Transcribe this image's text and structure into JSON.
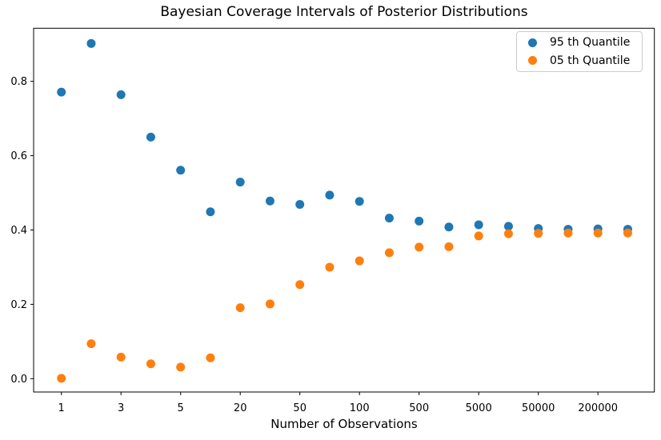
{
  "figure": {
    "title": "Bayesian Coverage Intervals of Posterior Distributions",
    "xlabel": "Number of Observations"
  },
  "chart_data": {
    "type": "scatter",
    "title": "Bayesian Coverage Intervals of Posterior Distributions",
    "xlabel": "Number of Observations",
    "ylabel": "",
    "grid": false,
    "legend_position": "upper right",
    "num_x_positions": 20,
    "x_tick_positions": [
      0,
      2,
      4,
      6,
      8,
      10,
      12,
      14,
      16,
      18
    ],
    "x_tick_labels": [
      "1",
      "3",
      "5",
      "20",
      "50",
      "100",
      "500",
      "5000",
      "50000",
      "200000"
    ],
    "y_ticks": [
      0.0,
      0.2,
      0.4,
      0.6,
      0.8
    ],
    "ylim": [
      -0.036,
      0.943
    ],
    "xlim": [
      -0.93,
      19.9
    ],
    "series": [
      {
        "name": "95 th Quantile",
        "color": "#1f77b4",
        "marker": "circle",
        "values": [
          0.771,
          0.902,
          0.764,
          0.65,
          0.561,
          0.449,
          0.529,
          0.478,
          0.469,
          0.494,
          0.477,
          0.432,
          0.424,
          0.408,
          0.414,
          0.41,
          0.404,
          0.402,
          0.403,
          0.402
        ]
      },
      {
        "name": "05 th Quantile",
        "color": "#ff7f0e",
        "marker": "circle",
        "values": [
          0.001,
          0.094,
          0.058,
          0.04,
          0.031,
          0.056,
          0.191,
          0.201,
          0.253,
          0.3,
          0.317,
          0.339,
          0.354,
          0.355,
          0.384,
          0.39,
          0.391,
          0.392,
          0.392,
          0.392
        ]
      }
    ]
  }
}
